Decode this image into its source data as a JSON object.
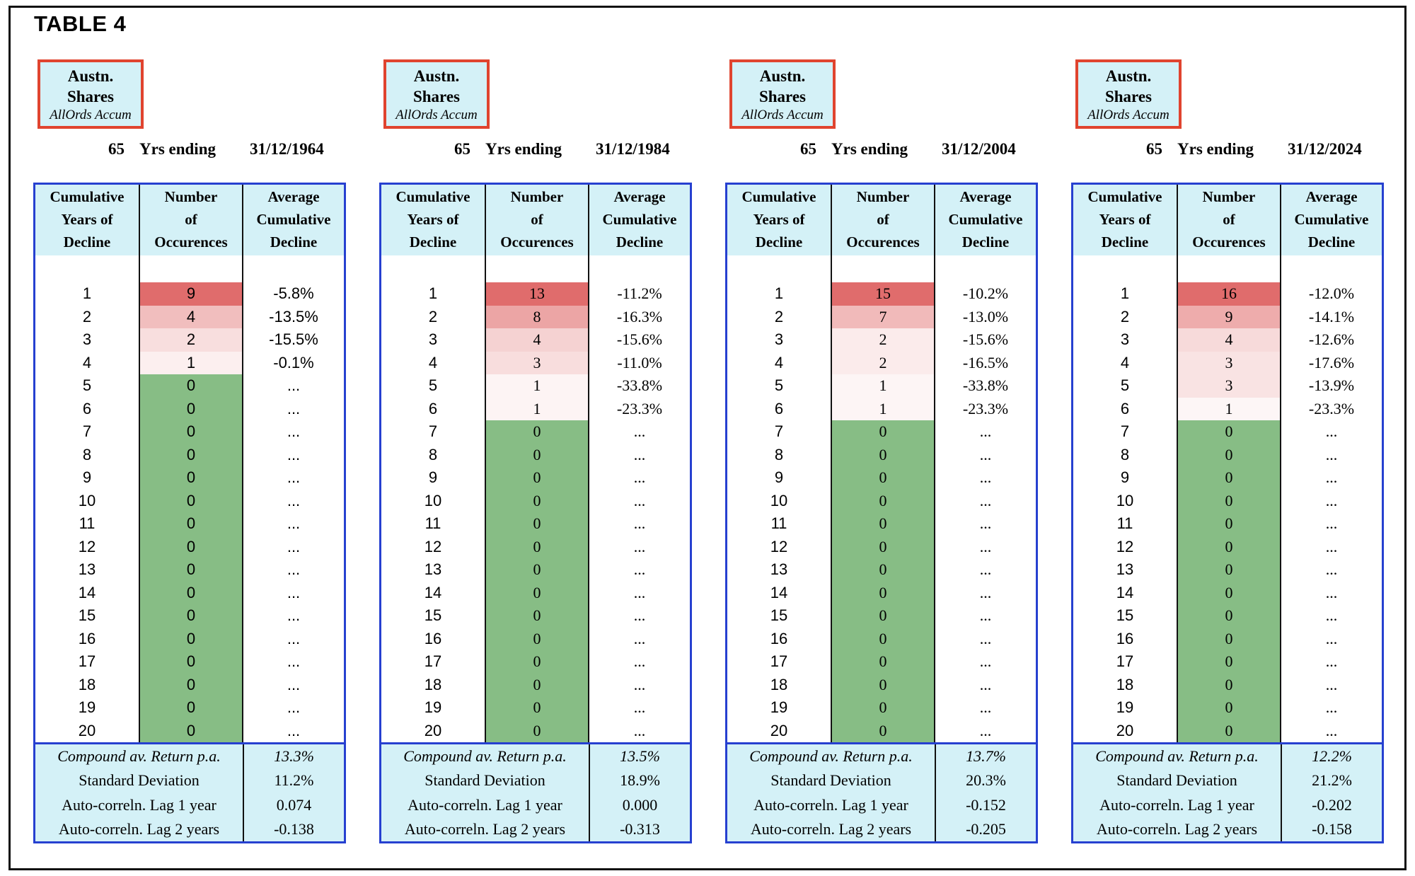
{
  "title": "TABLE 4",
  "colors": {
    "cyan_bg": "#d4f1f7",
    "blue_border": "#2640d0",
    "red_box_border": "#e0442f",
    "heat_red_max": "#e06c6c",
    "heat_green_zero": "#87bd85",
    "grid_line": "#111111"
  },
  "asset_box": {
    "line1": "Austn.",
    "line2": "Shares",
    "line3": "AllOrds Accum"
  },
  "period": {
    "years": "65",
    "label": "Yrs ending"
  },
  "table_header": {
    "col1": [
      "Cumulative",
      "Years of",
      "Decline"
    ],
    "col2": [
      "Number",
      "of",
      "Occurences"
    ],
    "col3": [
      "Average",
      "Cumulative",
      "Decline"
    ]
  },
  "summary_labels": [
    "Compound av. Return p.a.",
    "Standard Deviation",
    "Auto-correln. Lag 1 year",
    "Auto-correln. Lag 2 years"
  ],
  "years": [
    "1",
    "2",
    "3",
    "4",
    "5",
    "6",
    "7",
    "8",
    "9",
    "10",
    "11",
    "12",
    "13",
    "14",
    "15",
    "16",
    "17",
    "18",
    "19",
    "20"
  ],
  "panels": [
    {
      "end_date": "31/12/1964",
      "value_font": "sans",
      "occurrences": [
        9,
        4,
        2,
        1,
        0,
        0,
        0,
        0,
        0,
        0,
        0,
        0,
        0,
        0,
        0,
        0,
        0,
        0,
        0,
        0
      ],
      "declines": [
        "-5.8%",
        "-13.5%",
        "-15.5%",
        "-0.1%",
        "...",
        "...",
        "...",
        "...",
        "...",
        "...",
        "...",
        "...",
        "...",
        "...",
        "...",
        "...",
        "...",
        "...",
        "...",
        "..."
      ],
      "summary_values": [
        "13.3%",
        "11.2%",
        "0.074",
        "-0.138"
      ]
    },
    {
      "end_date": "31/12/1984",
      "value_font": "serif",
      "occurrences": [
        13,
        8,
        4,
        3,
        1,
        1,
        0,
        0,
        0,
        0,
        0,
        0,
        0,
        0,
        0,
        0,
        0,
        0,
        0,
        0
      ],
      "declines": [
        "-11.2%",
        "-16.3%",
        "-15.6%",
        "-11.0%",
        "-33.8%",
        "-23.3%",
        "...",
        "...",
        "...",
        "...",
        "...",
        "...",
        "...",
        "...",
        "...",
        "...",
        "...",
        "...",
        "...",
        "..."
      ],
      "summary_values": [
        "13.5%",
        "18.9%",
        "0.000",
        "-0.313"
      ]
    },
    {
      "end_date": "31/12/2004",
      "value_font": "serif",
      "occurrences": [
        15,
        7,
        2,
        2,
        1,
        1,
        0,
        0,
        0,
        0,
        0,
        0,
        0,
        0,
        0,
        0,
        0,
        0,
        0,
        0
      ],
      "declines": [
        "-10.2%",
        "-13.0%",
        "-15.6%",
        "-16.5%",
        "-33.8%",
        "-23.3%",
        "...",
        "...",
        "...",
        "...",
        "...",
        "...",
        "...",
        "...",
        "...",
        "...",
        "...",
        "...",
        "...",
        "..."
      ],
      "summary_values": [
        "13.7%",
        "20.3%",
        "-0.152",
        "-0.205"
      ]
    },
    {
      "end_date": "31/12/2024",
      "value_font": "serif",
      "occurrences": [
        16,
        9,
        4,
        3,
        3,
        1,
        0,
        0,
        0,
        0,
        0,
        0,
        0,
        0,
        0,
        0,
        0,
        0,
        0,
        0
      ],
      "declines": [
        "-12.0%",
        "-14.1%",
        "-12.6%",
        "-17.6%",
        "-13.9%",
        "-23.3%",
        "...",
        "...",
        "...",
        "...",
        "...",
        "...",
        "...",
        "...",
        "...",
        "...",
        "...",
        "...",
        "...",
        "..."
      ],
      "summary_values": [
        "12.2%",
        "21.2%",
        "-0.202",
        "-0.158"
      ]
    }
  ]
}
